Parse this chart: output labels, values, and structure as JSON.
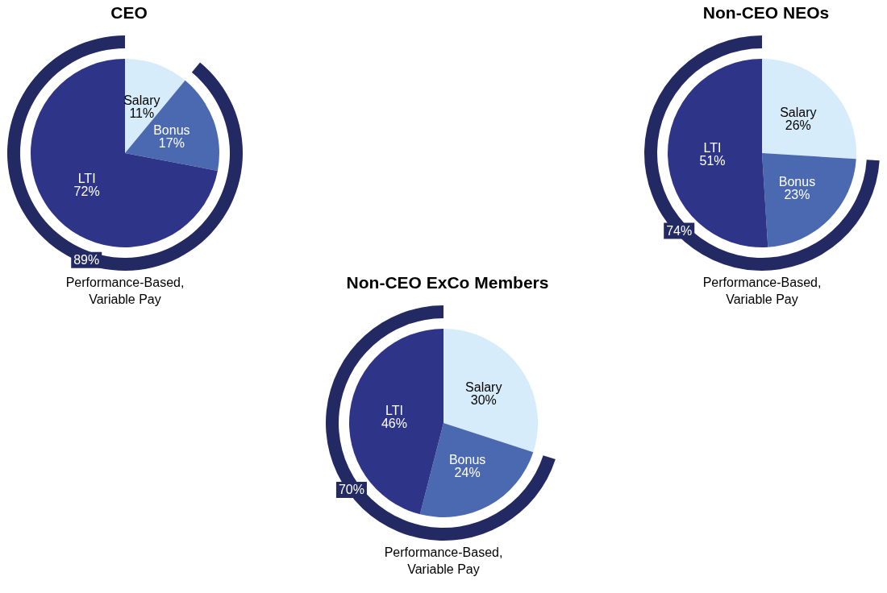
{
  "chart_data": [
    {
      "type": "pie",
      "title": "CEO",
      "categories": [
        "Salary",
        "Bonus",
        "LTI"
      ],
      "values": [
        11,
        17,
        72
      ],
      "value_labels": [
        "11%",
        "17%",
        "72%"
      ],
      "colors": [
        "#d6ecfa",
        "#4a69b1",
        "#2e3589"
      ]
    },
    {
      "type": "pie",
      "categories": [
        "Performance-Based,\nVariable Pay"
      ],
      "values": [
        89
      ],
      "value_labels": [
        "89%"
      ],
      "colors": [
        "#232a63"
      ]
    },
    {
      "type": "pie",
      "title": "Non-CEO NEOs",
      "categories": [
        "Salary",
        "Bonus",
        "LTI"
      ],
      "values": [
        26,
        23,
        51
      ],
      "value_labels": [
        "26%",
        "23%",
        "51%"
      ],
      "colors": [
        "#d6ecfa",
        "#4a69b1",
        "#2e3589"
      ]
    },
    {
      "type": "pie",
      "categories": [
        "Performance-Based,\nVariable Pay"
      ],
      "values": [
        74
      ],
      "value_labels": [
        "74%"
      ],
      "colors": [
        "#232a63"
      ]
    },
    {
      "type": "pie",
      "title": "Non-CEO ExCo Members",
      "categories": [
        "Salary",
        "Bonus",
        "LTI"
      ],
      "values": [
        30,
        24,
        46
      ],
      "value_labels": [
        "30%",
        "24%",
        "46%"
      ],
      "colors": [
        "#d6ecfa",
        "#4a69b1",
        "#2e3589"
      ]
    },
    {
      "type": "pie",
      "categories": [
        "Performance-Based,\nVariable Pay"
      ],
      "values": [
        70
      ],
      "value_labels": [
        "70%"
      ],
      "colors": [
        "#232a63"
      ]
    }
  ]
}
